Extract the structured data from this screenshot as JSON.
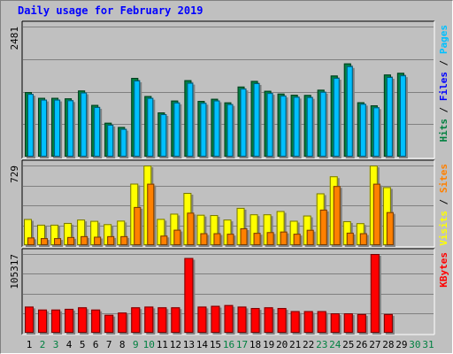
{
  "title": "Daily usage for February 2019",
  "colors": {
    "hits": "#008040",
    "files": "#00c0ff",
    "pages": "#00c0ff",
    "visits": "#ffff00",
    "sites": "#ff8000",
    "kbytes": "#ff0000",
    "weekend_label": "#008040",
    "weekday_label": "#000000"
  },
  "chart_data": {
    "type": "bar",
    "categories": [
      "1",
      "2",
      "3",
      "4",
      "5",
      "6",
      "7",
      "8",
      "9",
      "10",
      "11",
      "12",
      "13",
      "14",
      "15",
      "16",
      "17",
      "18",
      "19",
      "20",
      "21",
      "22",
      "23",
      "24",
      "25",
      "26",
      "27",
      "28",
      "29",
      "30",
      "31"
    ],
    "weekend_days": [
      "2",
      "3",
      "9",
      "10",
      "16",
      "17",
      "23",
      "24",
      "30",
      "31"
    ],
    "panels": [
      {
        "name": "traffic",
        "ytick": "2481",
        "ymax": 2481,
        "legend": [
          {
            "text": "Hits",
            "color": "#008040"
          },
          {
            "text": "Files",
            "color": "#0000ff"
          },
          {
            "text": "Pages",
            "color": "#00c0ff"
          }
        ],
        "series": [
          {
            "name": "Hits",
            "values": [
              1231,
              1121,
              1121,
              1111,
              1261,
              986,
              646,
              566,
              1501,
              1156,
              844,
              1069,
              1458,
              1062,
              1103,
              1034,
              1336,
              1444,
              1255,
              1202,
              1180,
              1176,
              1276,
              1547,
              1778,
              1037,
              979,
              1566,
              1598,
              null,
              null
            ]
          },
          {
            "name": "Files",
            "values": [
              1196,
              1087,
              1087,
              1075,
              1223,
              946,
              608,
              529,
              1452,
              1120,
              810,
              1032,
              1408,
              1025,
              1071,
              1002,
              1297,
              1401,
              1213,
              1163,
              1141,
              1136,
              1236,
              1501,
              1725,
              1007,
              940,
              1519,
              1550,
              null,
              null
            ]
          }
        ]
      },
      {
        "name": "visits",
        "ytick": "729",
        "ymax": 729,
        "legend": [
          {
            "text": "Visits",
            "color": "#ffff00"
          },
          {
            "text": "Sites",
            "color": "#ff8000"
          }
        ],
        "series": [
          {
            "name": "Visits",
            "values": [
              239,
              187,
              187,
              203,
              234,
              222,
              192,
              224,
              563,
              729,
              240,
              288,
              478,
              278,
              275,
              234,
              341,
              282,
              282,
              312,
              223,
              271,
              474,
              630,
              219,
              201,
              729,
              531,
              null,
              null,
              null
            ]
          },
          {
            "name": "Sites",
            "values": [
              70,
              64,
              64,
              74,
              82,
              77,
              82,
              82,
              349,
              562,
              87,
              141,
              297,
              109,
              109,
              104,
              154,
              112,
              119,
              124,
              104,
              140,
              325,
              541,
              114,
              109,
              562,
              302,
              null,
              null,
              null
            ]
          }
        ]
      },
      {
        "name": "kbytes",
        "ytick": "105317",
        "ymax": 105317,
        "legend": [
          {
            "text": "KBytes",
            "color": "#ff0000"
          }
        ],
        "series": [
          {
            "name": "KBytes",
            "values": [
              35000,
              31000,
              31000,
              32000,
              34000,
              31000,
              24000,
              27000,
              34000,
              35000,
              34000,
              34000,
              100000,
              35000,
              36000,
              37000,
              35000,
              33000,
              34000,
              33000,
              29000,
              29000,
              29000,
              26000,
              26000,
              25000,
              105317,
              25000,
              null,
              null,
              null
            ]
          }
        ]
      }
    ]
  }
}
